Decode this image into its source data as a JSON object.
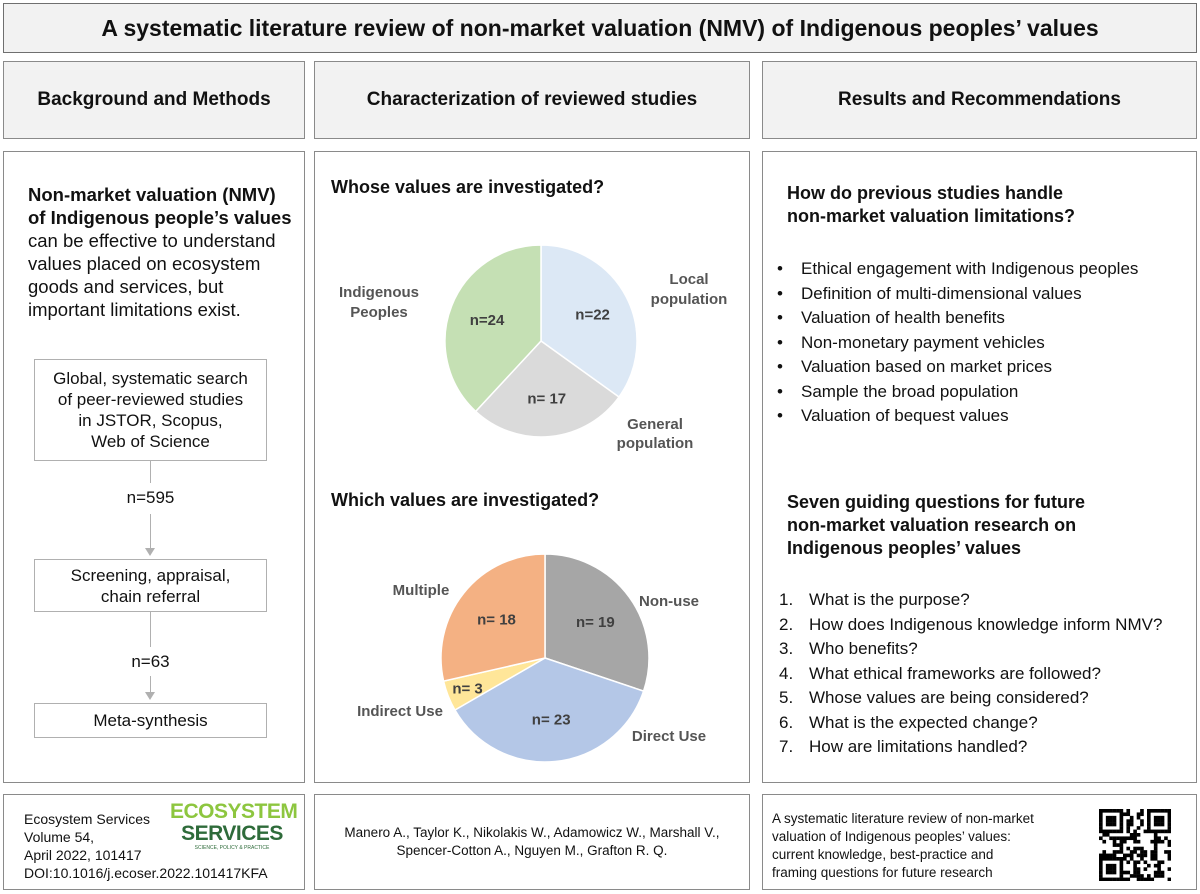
{
  "title": "A systematic literature review of non-market valuation (NMV) of Indigenous peoples’ values",
  "columns": {
    "left": "Background and Methods",
    "middle": "Characterization of reviewed studies",
    "right": "Results and Recommendations"
  },
  "background": {
    "bold_1": "Non-market valuation (NMV)",
    "bold_2": "of Indigenous people’s values",
    "line_3": "can be effective to understand",
    "line_4": "values placed on ecosystem",
    "line_5": "goods and services, but",
    "line_6": "important limitations exist."
  },
  "flow": {
    "box1": [
      "Global, systematic search",
      "of peer-reviewed studies",
      "in JSTOR, Scopus,",
      "Web of Science"
    ],
    "n1": "n=595",
    "box2": [
      "Screening, appraisal,",
      "chain referral"
    ],
    "n2": "n=63",
    "box3": "Meta-synthesis"
  },
  "chart_data": [
    {
      "type": "pie",
      "title": "Whose values are investigated?",
      "slices": [
        {
          "label": "Local population",
          "value": 22,
          "display": "n=22",
          "color": "#dce8f5"
        },
        {
          "label": "General population",
          "value": 17,
          "display": "n= 17",
          "color": "#dadada"
        },
        {
          "label": "Indigenous Peoples",
          "value": 24,
          "display": "n=24",
          "color": "#c5e0b4"
        }
      ]
    },
    {
      "type": "pie",
      "title": "Which values are investigated?",
      "slices": [
        {
          "label": "Non-use",
          "value": 19,
          "display": "n= 19",
          "color": "#a6a6a6"
        },
        {
          "label": "Direct Use",
          "value": 23,
          "display": "n= 23",
          "color": "#b4c7e7"
        },
        {
          "label": "Indirect Use",
          "value": 3,
          "display": "n= 3",
          "color": "#ffe699"
        },
        {
          "label": "Multiple",
          "value": 18,
          "display": "n= 18",
          "color": "#f4b183"
        }
      ]
    }
  ],
  "pie_labels": {
    "local_1": "Local",
    "local_2": "population",
    "general_1": "General",
    "general_2": "population",
    "indig_1": "Indigenous",
    "indig_2": "Peoples",
    "nonuse": "Non-use",
    "direct": "Direct Use",
    "indirect": "Indirect Use",
    "multiple": "Multiple"
  },
  "results": {
    "q1_line1": "How do previous studies handle",
    "q1_line2": "non-market valuation limitations?",
    "limitations": [
      "Ethical engagement with Indigenous peoples",
      "Definition of multi-dimensional values",
      "Valuation of health benefits",
      "Non-monetary payment vehicles",
      "Valuation based on market prices",
      "Sample the broad population",
      "Valuation of bequest values"
    ],
    "q2_line1": "Seven guiding questions for future",
    "q2_line2": "non-market valuation research on",
    "q2_line3": "Indigenous peoples’ values",
    "questions": [
      {
        "n": "1.",
        "text": "What is the purpose?"
      },
      {
        "n": "2.",
        "text": "How does Indigenous knowledge inform NMV?"
      },
      {
        "n": "3.",
        "text": "Who benefits?"
      },
      {
        "n": "4.",
        "text": "What ethical frameworks are followed?"
      },
      {
        "n": "5.",
        "text": "Whose values are being considered?"
      },
      {
        "n": "6.",
        "text": "What is the expected change?"
      },
      {
        "n": "7.",
        "text": "How are limitations handled?"
      }
    ]
  },
  "footer": {
    "journal": [
      "Ecosystem Services",
      "Volume 54,",
      "April 2022, 101417",
      "DOI:10.1016/j.ecoser.2022.101417KFA"
    ],
    "logo_1": "ECOSYSTEM",
    "logo_2": "SERVICES",
    "logo_tag": "SCIENCE, POLICY & PRACTICE",
    "authors_1": "Manero A., Taylor K., Nikolakis W., Adamowicz W., Marshall V.,",
    "authors_2": "Spencer-Cotton A., Nguyen M., Grafton R. Q.",
    "summary": [
      "A systematic literature review of non-market",
      "valuation of Indigenous peoples’ values:",
      "current knowledge, best-practice and",
      "framing questions for future research"
    ]
  },
  "colors": {
    "logo_green": "#8dc63f",
    "logo_dark": "#2e6b3a"
  }
}
